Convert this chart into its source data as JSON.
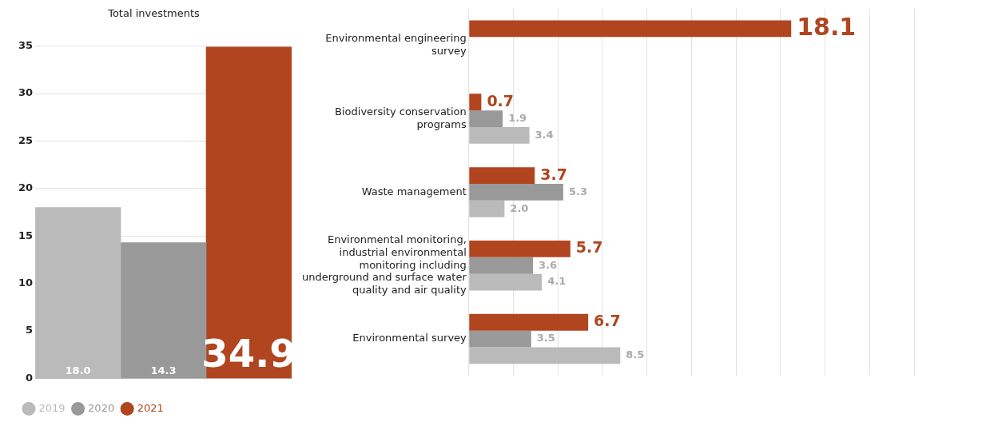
{
  "chart_data": [
    {
      "type": "bar",
      "title": "Total investments",
      "categories": [
        null
      ],
      "series": [
        {
          "name": "2019",
          "color": "#bababa",
          "values": [
            18.0
          ],
          "value_labels": [
            "18.0"
          ]
        },
        {
          "name": "2020",
          "color": "#999999",
          "values": [
            14.3
          ],
          "value_labels": [
            "14.3"
          ]
        },
        {
          "name": "2021",
          "color": "#b0451f",
          "values": [
            34.9
          ],
          "value_labels": [
            "34.9"
          ]
        }
      ],
      "ylim": [
        0,
        35
      ],
      "yticks": [
        0,
        5,
        10,
        15,
        20,
        25,
        30,
        35
      ],
      "grid": "y",
      "legend": "bottom"
    },
    {
      "type": "bar",
      "orientation": "horizontal",
      "categories": [
        "Environmental engineering survey",
        "Biodiversity conservation programs",
        "Waste management",
        "Environmental monitoring, industrial environmental monitoring including underground and surface water quality and air quality",
        "Environmental survey"
      ],
      "series": [
        {
          "color": "#b0451f",
          "values": [
            18.1,
            0.7,
            3.7,
            5.7,
            6.7
          ],
          "value_labels": [
            "18.1",
            "0.7",
            "3.7",
            "5.7",
            "6.7"
          ]
        },
        {
          "color": "#999999",
          "values": [
            null,
            1.9,
            5.3,
            3.6,
            3.5
          ],
          "value_labels": [
            null,
            "1.9",
            "5.3",
            "3.6",
            "3.5"
          ]
        },
        {
          "color": "#bababa",
          "values": [
            null,
            3.4,
            2.0,
            4.1,
            8.5
          ],
          "value_labels": [
            null,
            "3.4",
            "2.0",
            "4.1",
            "8.5"
          ]
        }
      ],
      "xlim": [
        0,
        25
      ],
      "xticks": [
        {
          "value": 0,
          "label": null
        },
        {
          "value": 2.5,
          "label": null
        },
        {
          "value": 5,
          "label": null
        },
        {
          "value": 7.5,
          "label": null
        },
        {
          "value": 10,
          "label": null
        },
        {
          "value": 12.5,
          "label": null
        },
        {
          "value": 15,
          "label": null
        },
        {
          "value": 17.5,
          "label": null
        },
        {
          "value": 20,
          "label": null
        },
        {
          "value": 22.5,
          "label": null
        },
        {
          "value": 25,
          "label": null
        }
      ],
      "grid": "x",
      "tick_labels": "y",
      "legend": false
    }
  ]
}
